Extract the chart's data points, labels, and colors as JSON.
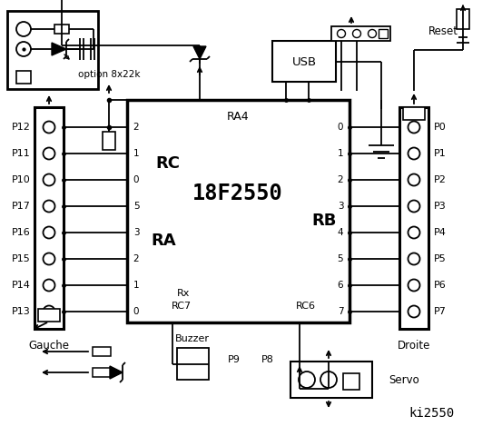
{
  "bg_color": "#ffffff",
  "line_color": "#000000",
  "title": "ki2550",
  "chip_label": "18F2550",
  "chip_sub": "RA4",
  "left_connector_label": "Gauche",
  "right_connector_label": "Droite",
  "left_pins": [
    "P12",
    "P11",
    "P10",
    "P17",
    "P16",
    "P15",
    "P14",
    "P13"
  ],
  "right_pins": [
    "P0",
    "P1",
    "P2",
    "P3",
    "P4",
    "P5",
    "P6",
    "P7"
  ],
  "rc_pins": [
    "2",
    "1",
    "0",
    "5",
    "3",
    "2",
    "1",
    "0"
  ],
  "rb_pins": [
    "0",
    "1",
    "2",
    "3",
    "4",
    "5",
    "6",
    "7"
  ],
  "rc_label": "RC",
  "ra_label": "RA",
  "rb_label": "RB",
  "bottom_labels": [
    "Buzzer",
    "P9",
    "P8",
    "Servo"
  ],
  "option_label": "option 8x22k",
  "reset_label": "Reset",
  "usb_label": "USB",
  "rx_label": "Rx",
  "rc7_label": "RC7",
  "rc6_label": "RC6"
}
